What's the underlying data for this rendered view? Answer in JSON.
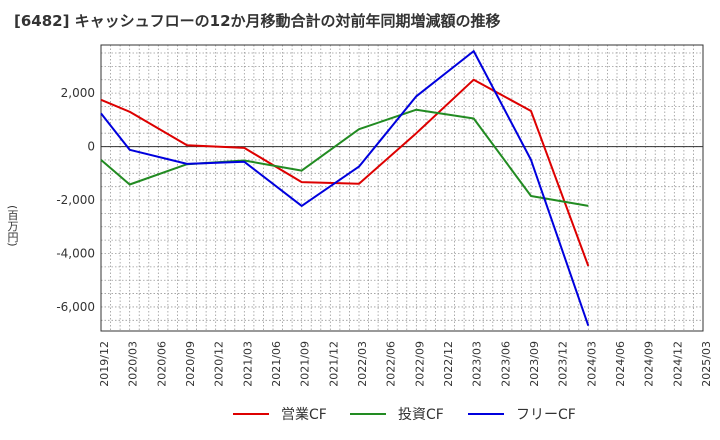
{
  "chart_data": {
    "type": "line",
    "title": "[6482]  キャッシュフローの12か月移動合計の対前年同期増減額の推移",
    "ylabel": "(百万円)",
    "xlabel": "",
    "ylim": [
      -6900,
      3800
    ],
    "yticks": [
      2000,
      0,
      -2000,
      -4000,
      -6000
    ],
    "ytick_labels": [
      "2,000",
      "0",
      "-2,000",
      "-4,000",
      "-6,000"
    ],
    "x": [
      "2019/12",
      "2020/03",
      "2020/06",
      "2020/09",
      "2020/12",
      "2021/03",
      "2021/06",
      "2021/09",
      "2021/12",
      "2022/03",
      "2022/06",
      "2022/09",
      "2022/12",
      "2023/03",
      "2023/06",
      "2023/09",
      "2023/12",
      "2024/03",
      "2024/06",
      "2024/09",
      "2024/12",
      "2025/03"
    ],
    "grid": true,
    "legend_position": "bottom",
    "zero_line": true,
    "series": [
      {
        "name": "営業CF",
        "color": "#dd0000",
        "values": [
          1750,
          1300,
          null,
          50,
          null,
          -50,
          null,
          -1330,
          null,
          -1390,
          null,
          500,
          null,
          2500,
          null,
          1330,
          null,
          -4470,
          null,
          null,
          null,
          null
        ]
      },
      {
        "name": "投資CF",
        "color": "#228b22",
        "values": [
          -500,
          -1420,
          null,
          -660,
          null,
          -520,
          null,
          -900,
          null,
          650,
          null,
          1380,
          null,
          1050,
          null,
          -1850,
          null,
          -2220,
          null,
          null,
          null,
          null
        ]
      },
      {
        "name": "フリーCF",
        "color": "#0000dd",
        "values": [
          1240,
          -120,
          null,
          -650,
          null,
          -570,
          null,
          -2220,
          null,
          -750,
          null,
          1880,
          null,
          3570,
          null,
          -500,
          null,
          -6700,
          null,
          null,
          null,
          null
        ]
      }
    ]
  }
}
